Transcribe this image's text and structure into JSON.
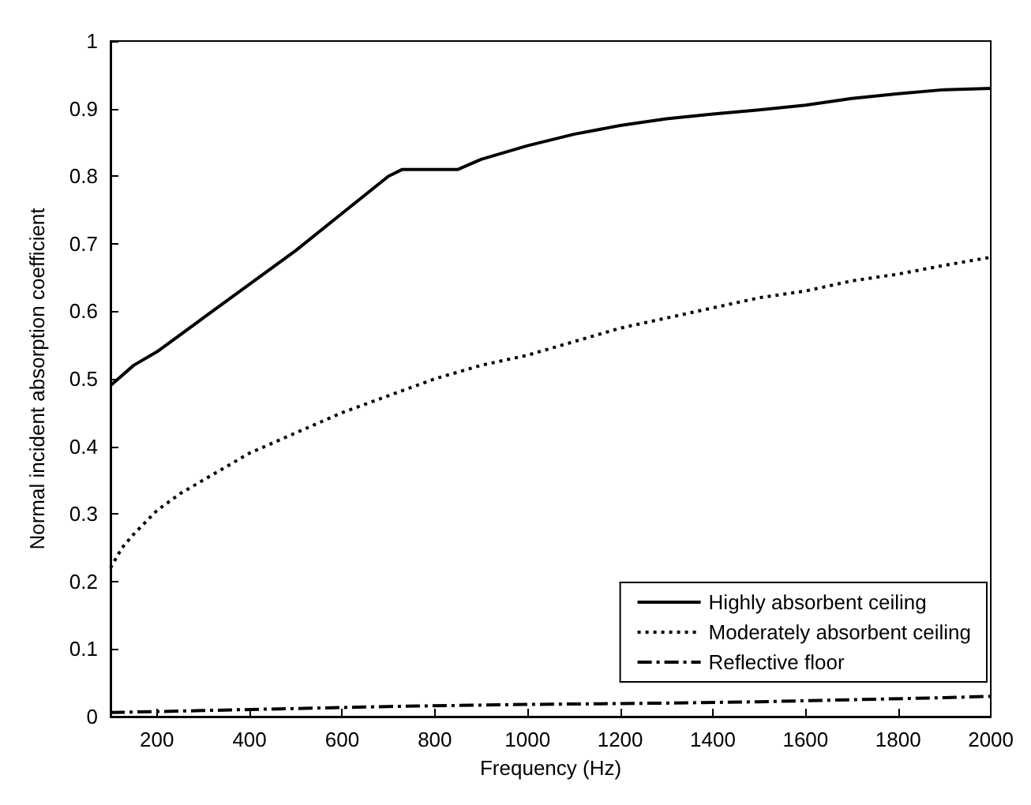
{
  "chart_data": {
    "type": "line",
    "xlabel": "Frequency (Hz)",
    "ylabel": "Normal incident absorption coefficient",
    "xlim": [
      100,
      2000
    ],
    "ylim": [
      0,
      1
    ],
    "xticks": [
      200,
      400,
      600,
      800,
      1000,
      1200,
      1400,
      1600,
      1800,
      2000
    ],
    "yticks": [
      0,
      0.1,
      0.2,
      0.3,
      0.4,
      0.5,
      0.6,
      0.7,
      0.8,
      0.9,
      1
    ],
    "grid": false,
    "legend": "bottom right",
    "marker": "none",
    "series": [
      {
        "name": "Highly absorbent ceiling",
        "color": "#000000",
        "line_style": "solid",
        "x": [
          100,
          150,
          200,
          300,
          400,
          500,
          600,
          700,
          730,
          850,
          900,
          1000,
          1100,
          1200,
          1300,
          1400,
          1500,
          1600,
          1700,
          1800,
          1900,
          2000
        ],
        "values": [
          0.49,
          0.52,
          0.54,
          0.59,
          0.64,
          0.69,
          0.745,
          0.8,
          0.81,
          0.81,
          0.825,
          0.845,
          0.862,
          0.875,
          0.885,
          0.892,
          0.898,
          0.905,
          0.915,
          0.922,
          0.928,
          0.93
        ]
      },
      {
        "name": "Moderately absorbent ceiling",
        "color": "#000000",
        "line_style": "dotted",
        "x": [
          100,
          125,
          150,
          200,
          250,
          300,
          400,
          500,
          600,
          700,
          800,
          900,
          1000,
          1100,
          1200,
          1300,
          1400,
          1500,
          1600,
          1700,
          1800,
          1900,
          2000
        ],
        "values": [
          0.22,
          0.25,
          0.27,
          0.305,
          0.33,
          0.35,
          0.39,
          0.42,
          0.45,
          0.475,
          0.5,
          0.52,
          0.535,
          0.555,
          0.575,
          0.59,
          0.605,
          0.62,
          0.63,
          0.645,
          0.655,
          0.668,
          0.68
        ]
      },
      {
        "name": "Reflective floor",
        "color": "#000000",
        "line_style": "dashdot",
        "x": [
          100,
          300,
          500,
          700,
          1000,
          1300,
          1500,
          1700,
          1900,
          2000
        ],
        "values": [
          0.006,
          0.009,
          0.012,
          0.015,
          0.018,
          0.02,
          0.022,
          0.025,
          0.028,
          0.03
        ]
      }
    ]
  }
}
